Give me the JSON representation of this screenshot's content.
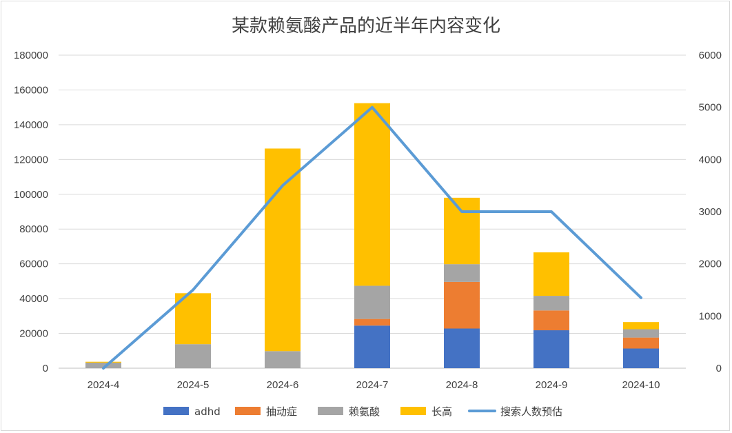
{
  "chart_data": {
    "type": "bar",
    "title": "某款赖氨酸产品的近半年内容变化",
    "categories": [
      "2024-4",
      "2024-5",
      "2024-6",
      "2024-7",
      "2024-8",
      "2024-9",
      "2024-10"
    ],
    "series": [
      {
        "name": "adhd",
        "type": "bar",
        "axis": "left",
        "color": "#4472c4",
        "values": [
          0,
          0,
          0,
          24500,
          22800,
          21800,
          11300
        ]
      },
      {
        "name": "抽动症",
        "type": "bar",
        "axis": "left",
        "color": "#ed7d31",
        "values": [
          0,
          0,
          0,
          3800,
          26800,
          11400,
          6300
        ]
      },
      {
        "name": "赖氨酸",
        "type": "bar",
        "axis": "left",
        "color": "#a5a5a5",
        "values": [
          3200,
          13800,
          9800,
          19100,
          10200,
          8400,
          4800
        ]
      },
      {
        "name": "长高",
        "type": "bar",
        "axis": "left",
        "color": "#ffc000",
        "values": [
          500,
          29300,
          116500,
          105000,
          38200,
          25000,
          4100
        ]
      },
      {
        "name": "搜索人数预估",
        "type": "line",
        "axis": "right",
        "color": "#5b9bd5",
        "values": [
          0,
          1500,
          3500,
          5000,
          3000,
          3000,
          1350
        ]
      }
    ],
    "y_left": {
      "min": 0,
      "max": 180000,
      "ticks": [
        "0",
        "20000",
        "40000",
        "60000",
        "80000",
        "100000",
        "120000",
        "140000",
        "160000",
        "180000"
      ]
    },
    "y_right": {
      "min": 0,
      "max": 6000,
      "ticks": [
        "0",
        "1000",
        "2000",
        "3000",
        "4000",
        "5000",
        "6000"
      ]
    },
    "stacked": true,
    "grid": true,
    "legend_position": "bottom"
  }
}
